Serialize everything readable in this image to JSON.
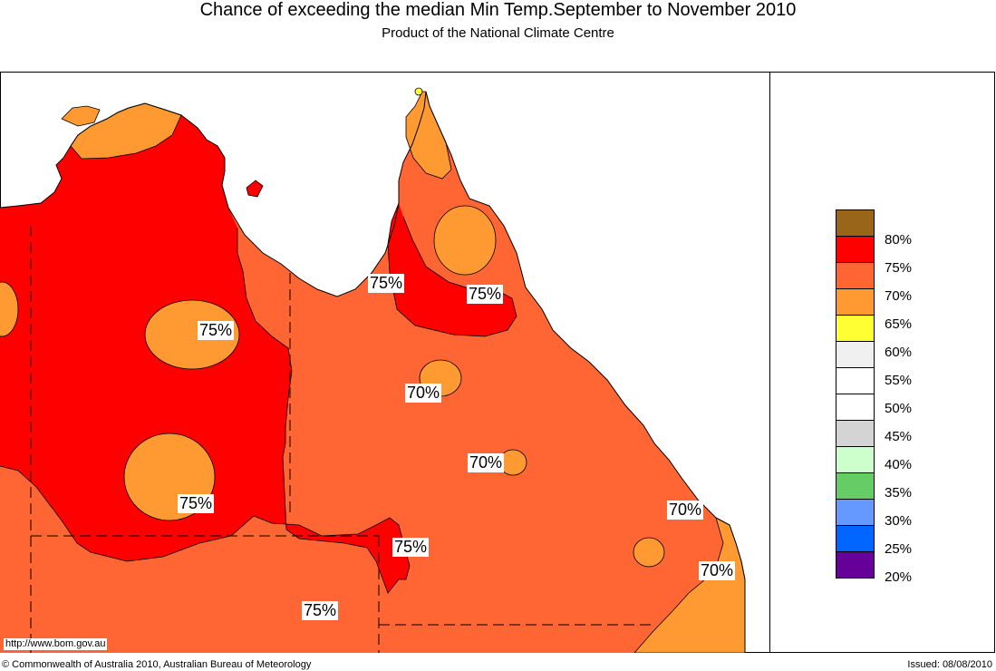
{
  "title": "Chance of exceeding the median Min Temp.September to November 2010",
  "subtitle": "Product of the National Climate Centre",
  "url": "http://www.bom.gov.au",
  "copyright": "© Commonwealth of Australia 2010, Australian Bureau of Meteorology",
  "issued": "Issued: 08/08/2010",
  "colors": {
    "c65": "#FF9A33",
    "c70": "#FF6633",
    "c75": "#FF0000",
    "ocean": "#FFFFFF"
  },
  "legend": [
    {
      "label": "80%",
      "color": "#996619"
    },
    {
      "label": "75%",
      "color": "#FF0000"
    },
    {
      "label": "70%",
      "color": "#FF6633"
    },
    {
      "label": "65%",
      "color": "#FF9A33"
    },
    {
      "label": "60%",
      "color": "#FFFF33"
    },
    {
      "label": "55%",
      "color": "#F0F0F0"
    },
    {
      "label": "50%",
      "color": "#FFFFFF"
    },
    {
      "label": "45%",
      "color": "#FFFFFF"
    },
    {
      "label": "40%",
      "color": "#D4D4D4"
    },
    {
      "label": "35%",
      "color": "#CCFFCC"
    },
    {
      "label": "30%",
      "color": "#66CC66"
    },
    {
      "label": "25%",
      "color": "#6699FF"
    },
    {
      "label": "20%",
      "color": "#0066FF"
    },
    {
      "label": "",
      "color": "#660099"
    }
  ],
  "contour_labels": [
    "75%",
    "75%",
    "75%",
    "70%",
    "75%",
    "70%",
    "70%",
    "75%",
    "75%",
    "70%"
  ]
}
